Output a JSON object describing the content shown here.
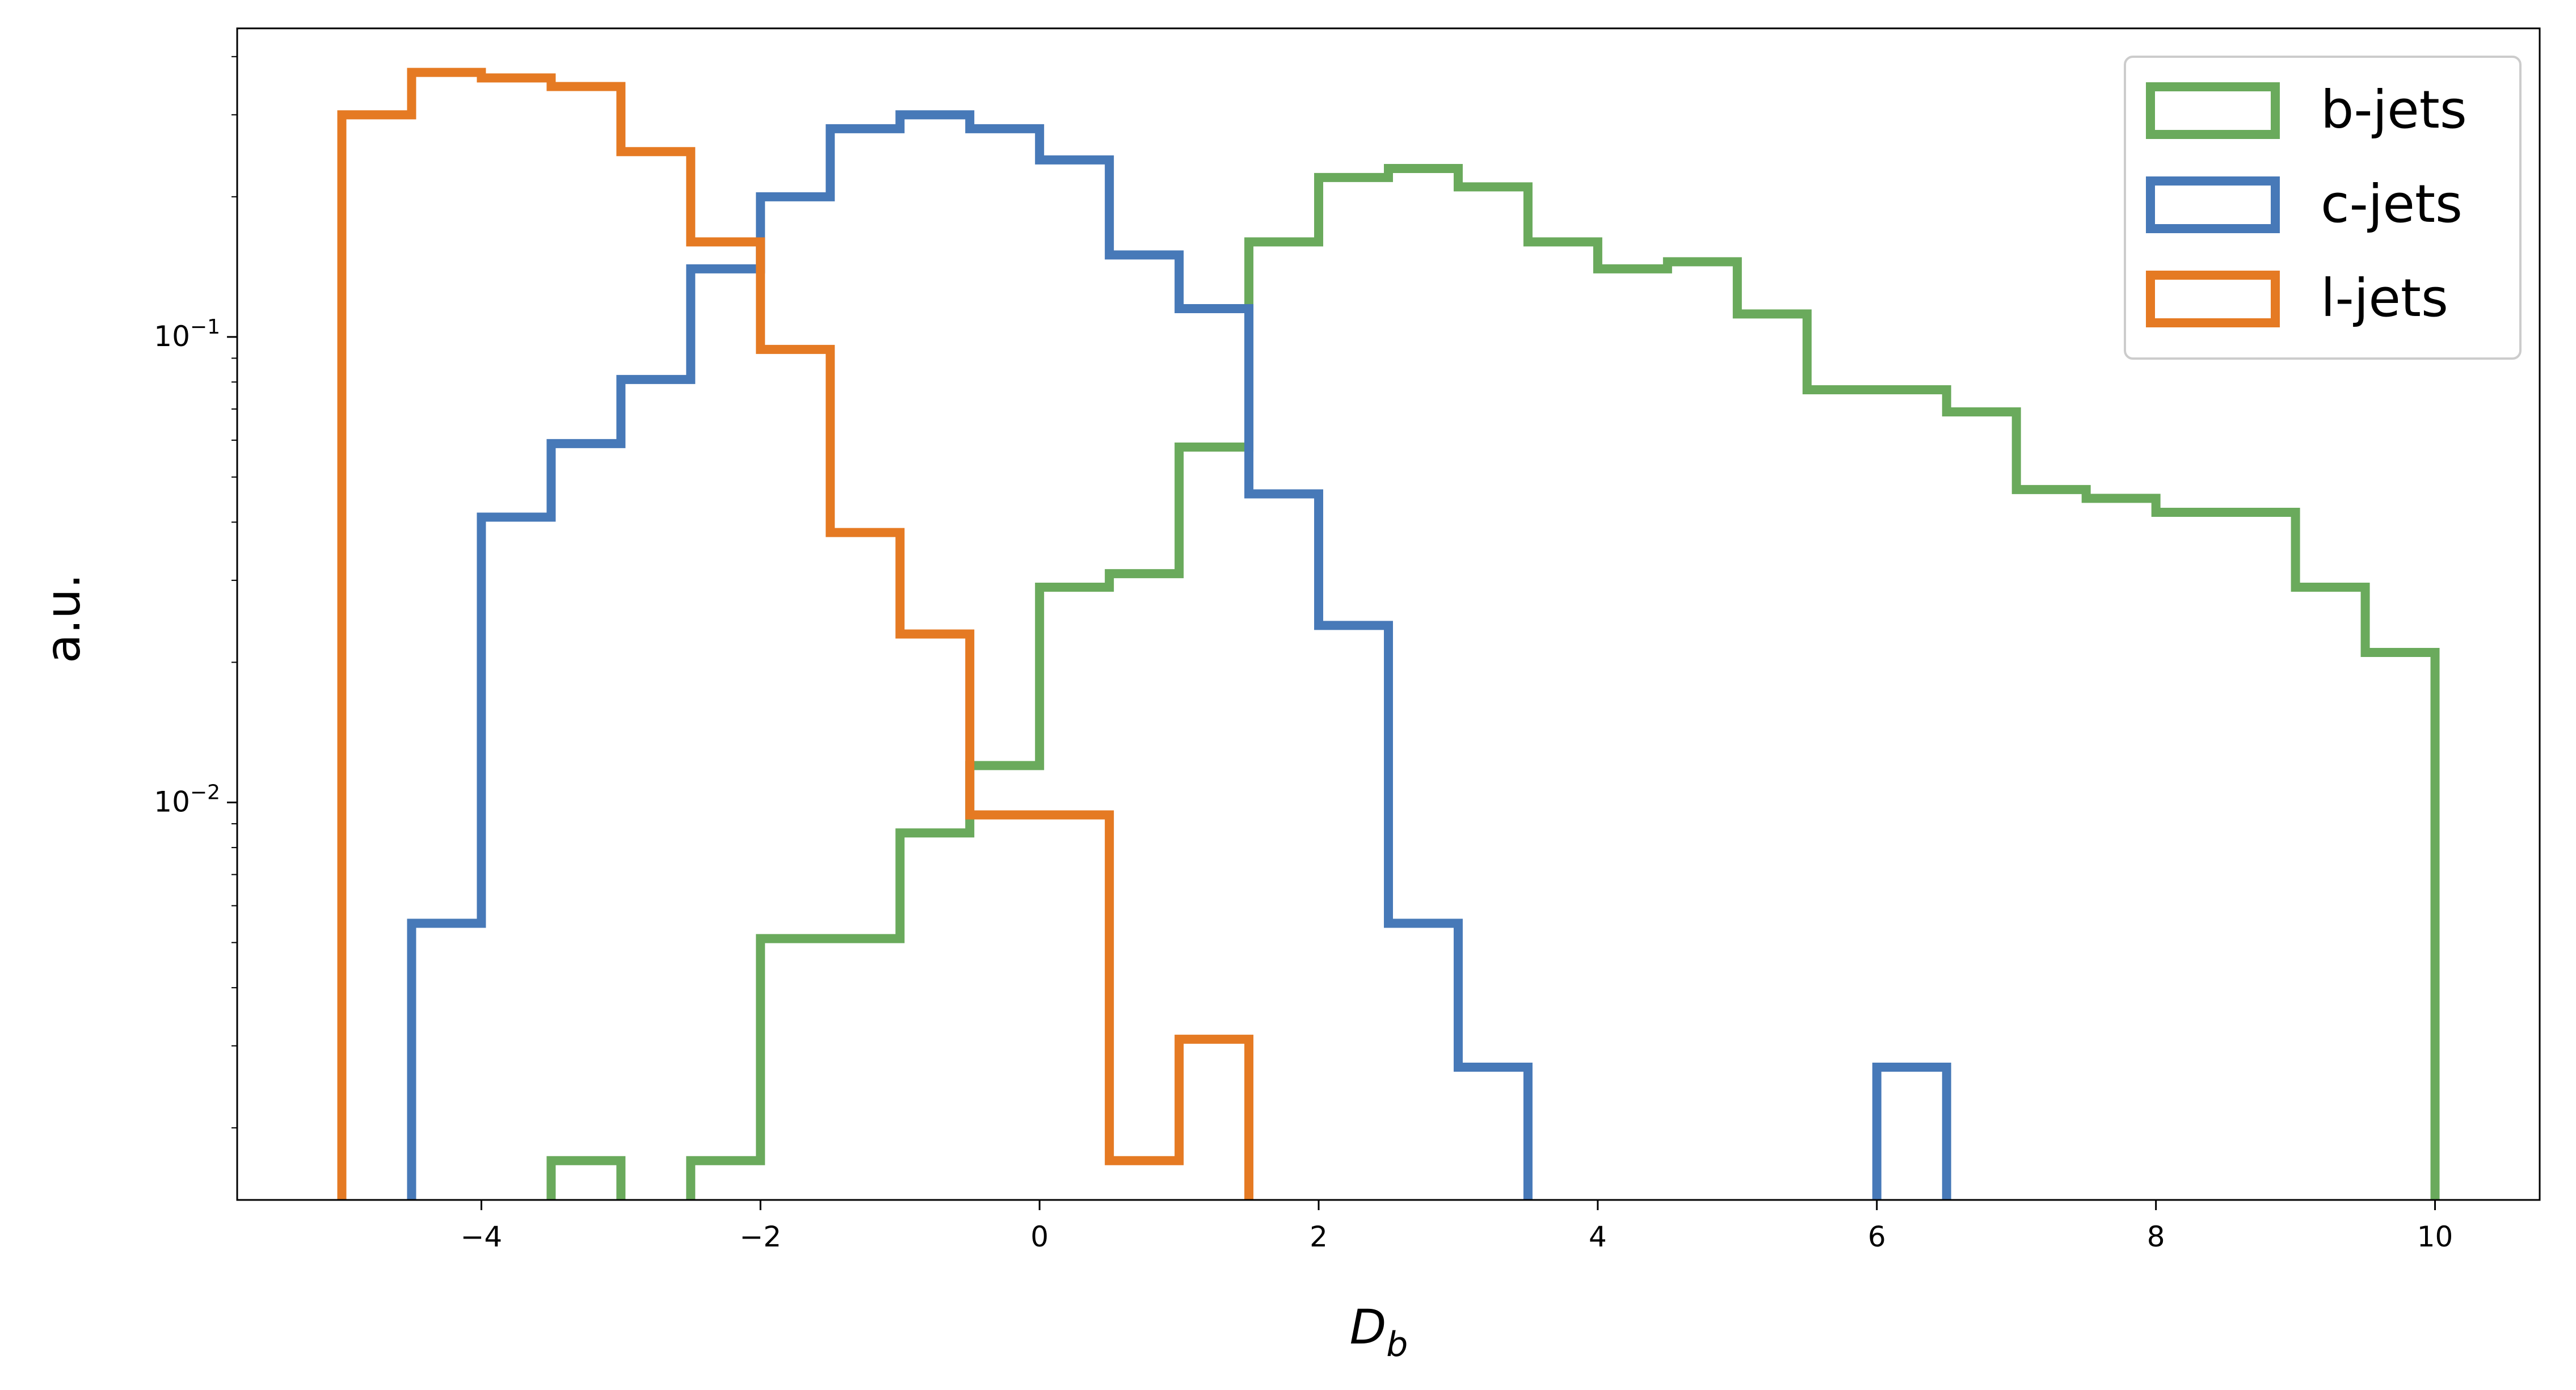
{
  "chart_data": {
    "type": "histogram-step",
    "xlabel": "D",
    "xlabel_sub": "b",
    "ylabel": "a.u.",
    "xlim": [
      -5.75,
      10.75
    ],
    "ylim": [
      0.0014,
      0.46
    ],
    "yscale": "log",
    "grid": false,
    "legend_position": "top-right",
    "bin_edges": [
      -5,
      -4.5,
      -4,
      -3.5,
      -3,
      -2.5,
      -2,
      -1.5,
      -1,
      -0.5,
      0,
      0.5,
      1,
      1.5,
      2,
      2.5,
      3,
      3.5,
      4,
      4.5,
      5,
      5.5,
      6,
      6.5,
      7,
      7.5,
      8,
      8.5,
      9,
      9.5,
      10
    ],
    "x_ticks": [
      {
        "value": -4,
        "label": "−4"
      },
      {
        "value": -2,
        "label": "−2"
      },
      {
        "value": 0,
        "label": "0"
      },
      {
        "value": 2,
        "label": "2"
      },
      {
        "value": 4,
        "label": "4"
      },
      {
        "value": 6,
        "label": "6"
      },
      {
        "value": 8,
        "label": "8"
      },
      {
        "value": 10,
        "label": "10"
      }
    ],
    "y_ticks": [
      {
        "value": 0.1,
        "base": "10",
        "exp": "−1"
      },
      {
        "value": 0.01,
        "base": "10",
        "exp": "−2"
      }
    ],
    "y_minor_ticks": [
      0.002,
      0.003,
      0.004,
      0.005,
      0.006,
      0.007,
      0.008,
      0.009,
      0.02,
      0.03,
      0.04,
      0.05,
      0.06,
      0.07,
      0.08,
      0.09,
      0.2,
      0.3,
      0.4
    ],
    "series": [
      {
        "name": "b-jets",
        "color": "#6aaa5c",
        "values": [
          0,
          0,
          0,
          0.0017,
          0,
          0.0017,
          0.0051,
          0.0051,
          0.0086,
          0.012,
          0.029,
          0.031,
          0.058,
          0.16,
          0.22,
          0.23,
          0.21,
          0.16,
          0.14,
          0.145,
          0.112,
          0.077,
          0.077,
          0.069,
          0.047,
          0.045,
          0.042,
          0.042,
          0.029,
          0.021
        ]
      },
      {
        "name": "c-jets",
        "color": "#4779b8",
        "values": [
          0,
          0.0055,
          0.041,
          0.059,
          0.081,
          0.14,
          0.2,
          0.28,
          0.3,
          0.28,
          0.24,
          0.15,
          0.115,
          0.046,
          0.024,
          0.0055,
          0.0027,
          0,
          0,
          0,
          0,
          0,
          0.0027,
          0,
          0,
          0,
          0,
          0,
          0,
          0
        ]
      },
      {
        "name": "l-jets",
        "color": "#e57a23",
        "values": [
          0.3,
          0.37,
          0.36,
          0.345,
          0.25,
          0.16,
          0.094,
          0.038,
          0.023,
          0.0094,
          0.0094,
          0.0017,
          0.0031,
          0,
          0,
          0,
          0,
          0,
          0,
          0,
          0,
          0,
          0,
          0,
          0,
          0,
          0,
          0,
          0,
          0
        ]
      }
    ]
  }
}
